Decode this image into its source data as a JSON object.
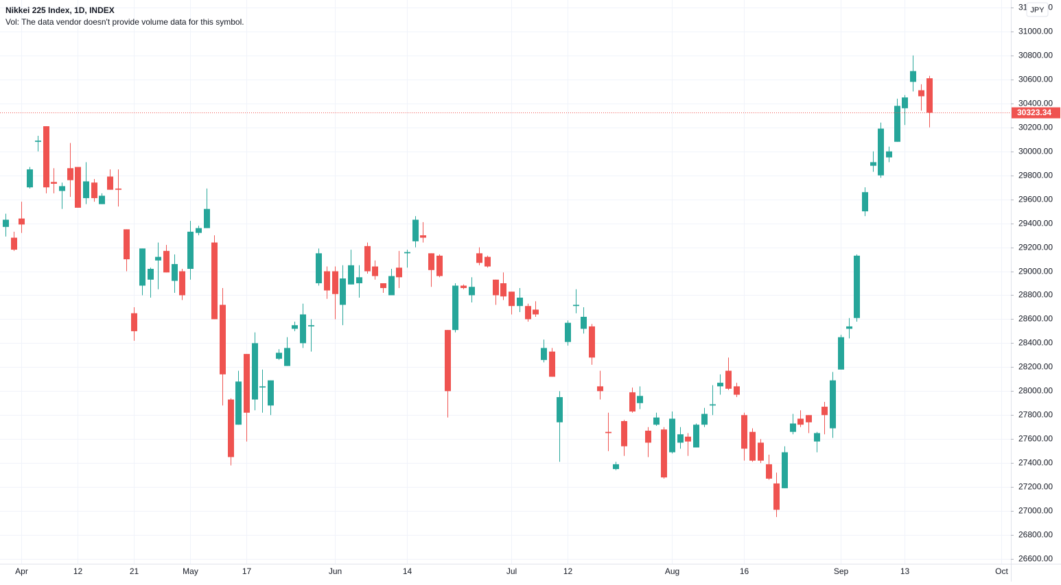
{
  "chart_data": {
    "type": "candlestick",
    "title": "Nikkei 225 Index, 1D, INDEX",
    "subtitle": "Vol: The data vendor doesn't provide volume data for this symbol.",
    "currency": "JPY",
    "up_color": "#26a69a",
    "down_color": "#ef5350",
    "grid": true,
    "categories": [
      null,
      null,
      "Apr",
      null,
      null,
      null,
      null,
      null,
      null,
      "12",
      null,
      null,
      null,
      null,
      null,
      null,
      "21",
      null,
      null,
      null,
      null,
      null,
      null,
      "May",
      null,
      null,
      null,
      null,
      null,
      null,
      "17",
      null,
      null,
      null,
      null,
      null,
      null,
      null,
      null,
      null,
      null,
      "Jun",
      null,
      null,
      null,
      null,
      null,
      null,
      null,
      null,
      "14",
      null,
      null,
      null,
      null,
      null,
      null,
      null,
      null,
      null,
      null,
      null,
      null,
      "Jul",
      null,
      null,
      null,
      null,
      null,
      null,
      "12",
      null,
      null,
      null,
      null,
      null,
      null,
      null,
      null,
      null,
      null,
      null,
      null,
      "Aug",
      null,
      null,
      null,
      null,
      null,
      null,
      null,
      null,
      "16",
      null,
      null,
      null,
      null,
      null,
      null,
      null,
      null,
      null,
      null,
      null,
      "Sep",
      null,
      null,
      null,
      null,
      null,
      null,
      null,
      "13",
      null,
      null,
      null,
      null,
      null,
      null,
      null,
      null,
      null,
      null,
      null,
      "Oct"
    ],
    "open": [
      29370,
      29280,
      29440,
      29700,
      30080,
      30210,
      29745,
      29670,
      29860,
      29870,
      29610,
      29740,
      29560,
      29790,
      29690,
      29350,
      28650,
      28880,
      28930,
      29090,
      29170,
      28920,
      29000,
      29020,
      29320,
      29360,
      29240,
      28720,
      27930,
      27720,
      28310,
      27930,
      28030,
      27880,
      28270,
      28210,
      28520,
      28400,
      28540,
      28900,
      29000,
      29000,
      28720,
      28890,
      28900,
      29210,
      29040,
      28900,
      28800,
      29030,
      29150,
      29250,
      29300,
      29150,
      29130,
      28510,
      28510,
      28880,
      28800,
      29150,
      29120,
      28930,
      28900,
      28830,
      28710,
      28710,
      28680,
      28260,
      28330,
      27740,
      28410,
      28710,
      28520,
      28540,
      28040,
      27660,
      27350,
      27750,
      27990,
      27900,
      27670,
      27720,
      27680,
      27490,
      27570,
      27620,
      27530,
      27720,
      27880,
      28040,
      28170,
      28040,
      27800,
      27660,
      27570,
      27390,
      27230,
      27190,
      27660,
      27770,
      27800,
      27580,
      27870,
      27690,
      28180,
      28520,
      28610,
      29500,
      29880,
      29800,
      29950,
      30080,
      30360,
      30580,
      30510,
      30610,
      null,
      null,
      null,
      null,
      null,
      null,
      null,
      null,
      null
    ],
    "high": [
      29480,
      29330,
      29580,
      29870,
      30130,
      30210,
      29860,
      29740,
      30070,
      29870,
      29910,
      29770,
      29650,
      29850,
      29850,
      29350,
      28700,
      29190,
      29030,
      29240,
      29220,
      29140,
      29020,
      29420,
      29380,
      29690,
      29300,
      28860,
      27940,
      28170,
      28310,
      28490,
      28180,
      28090,
      28350,
      28450,
      28580,
      28730,
      28600,
      29190,
      29040,
      29040,
      29050,
      29180,
      29050,
      29240,
      29090,
      28900,
      29020,
      29170,
      29180,
      29460,
      29410,
      29150,
      29140,
      28510,
      28900,
      28890,
      28950,
      29200,
      29130,
      28930,
      28990,
      28830,
      28860,
      28730,
      28750,
      28430,
      28360,
      28000,
      28590,
      28850,
      28700,
      28560,
      28170,
      27820,
      27410,
      27760,
      28030,
      28040,
      27700,
      27820,
      27700,
      27830,
      27700,
      27650,
      27730,
      27860,
      28050,
      28140,
      28280,
      28070,
      27820,
      27690,
      27600,
      27470,
      27320,
      27540,
      27810,
      27840,
      27800,
      27660,
      27910,
      28160,
      28470,
      28610,
      29140,
      29700,
      30000,
      30240,
      30040,
      30440,
      30470,
      30800,
      30560,
      30630,
      null,
      null,
      null,
      null,
      null,
      null,
      null,
      null,
      null
    ],
    "low": [
      29290,
      29170,
      29320,
      29690,
      30000,
      29650,
      29650,
      29520,
      29620,
      29530,
      29560,
      29580,
      29560,
      29680,
      29540,
      29000,
      28420,
      28800,
      28780,
      28850,
      28990,
      28820,
      28760,
      28930,
      29300,
      29360,
      28600,
      27880,
      27380,
      27720,
      27580,
      27840,
      27820,
      27800,
      28260,
      28210,
      28500,
      28360,
      28330,
      28880,
      28770,
      28600,
      28550,
      28890,
      28780,
      28980,
      28930,
      28820,
      28800,
      28860,
      29030,
      29200,
      29240,
      28870,
      28950,
      27780,
      28490,
      28850,
      28740,
      29050,
      29030,
      28720,
      28760,
      28640,
      28660,
      28580,
      28620,
      28240,
      28120,
      27410,
      28380,
      28650,
      28480,
      28220,
      27930,
      27500,
      27340,
      27460,
      27820,
      27850,
      27450,
      27710,
      27270,
      27480,
      27520,
      27460,
      27530,
      27700,
      27800,
      27970,
      28010,
      27950,
      27420,
      27410,
      27400,
      27260,
      26950,
      27190,
      27640,
      27700,
      27650,
      27490,
      27640,
      27610,
      28180,
      28440,
      28580,
      29460,
      29830,
      29780,
      29910,
      30080,
      30220,
      30500,
      30340,
      30200,
      null,
      null,
      null,
      null,
      null,
      null,
      null,
      null,
      null
    ],
    "close": [
      29430,
      29180,
      29390,
      29850,
      30090,
      29700,
      29730,
      29710,
      29760,
      29530,
      29750,
      29610,
      29630,
      29680,
      29680,
      29100,
      28500,
      29190,
      29020,
      29120,
      28990,
      29060,
      28800,
      29330,
      29360,
      29520,
      28600,
      28140,
      27450,
      28080,
      27820,
      28400,
      28040,
      28090,
      28320,
      28360,
      28550,
      28640,
      28550,
      29150,
      28840,
      28810,
      28940,
      29050,
      28950,
      29000,
      28960,
      28860,
      28960,
      28950,
      29160,
      29430,
      29280,
      29010,
      28960,
      28000,
      28880,
      28860,
      28870,
      29070,
      29040,
      28800,
      28790,
      28710,
      28780,
      28600,
      28640,
      28360,
      28120,
      27950,
      28570,
      28720,
      28620,
      28280,
      28000,
      27650,
      27390,
      27540,
      27830,
      27960,
      27570,
      27780,
      27280,
      27770,
      27640,
      27580,
      27720,
      27810,
      27890,
      28070,
      28020,
      27970,
      27520,
      27420,
      27420,
      27270,
      27010,
      27490,
      27730,
      27720,
      27740,
      27650,
      27800,
      28090,
      28450,
      28540,
      29130,
      29660,
      29910,
      30190,
      30000,
      30380,
      30450,
      30670,
      30460,
      30323.34,
      null,
      null,
      null,
      null,
      null,
      null,
      null,
      null,
      null
    ],
    "ylim": [
      26560,
      31263
    ],
    "yticks": [
      {
        "value": 26600,
        "label": "26600.00"
      },
      {
        "value": 26800,
        "label": "26800.00"
      },
      {
        "value": 27000,
        "label": "27000.00"
      },
      {
        "value": 27200,
        "label": "27200.00"
      },
      {
        "value": 27400,
        "label": "27400.00"
      },
      {
        "value": 27600,
        "label": "27600.00"
      },
      {
        "value": 27800,
        "label": "27800.00"
      },
      {
        "value": 28000,
        "label": "28000.00"
      },
      {
        "value": 28200,
        "label": "28200.00"
      },
      {
        "value": 28400,
        "label": "28400.00"
      },
      {
        "value": 28600,
        "label": "28600.00"
      },
      {
        "value": 28800,
        "label": "28800.00"
      },
      {
        "value": 29000,
        "label": "29000.00"
      },
      {
        "value": 29200,
        "label": "29200.00"
      },
      {
        "value": 29400,
        "label": "29400.00"
      },
      {
        "value": 29600,
        "label": "29600.00"
      },
      {
        "value": 29800,
        "label": "29800.00"
      },
      {
        "value": 30000,
        "label": "30000.00"
      },
      {
        "value": 30200,
        "label": "30200.00"
      },
      {
        "value": 30400,
        "label": "30400.00"
      },
      {
        "value": 30600,
        "label": "30600.00"
      },
      {
        "value": 30800,
        "label": "30800.00"
      },
      {
        "value": 31000,
        "label": "31000.00"
      },
      {
        "value": 31200,
        "label": "31200.00"
      }
    ]
  }
}
